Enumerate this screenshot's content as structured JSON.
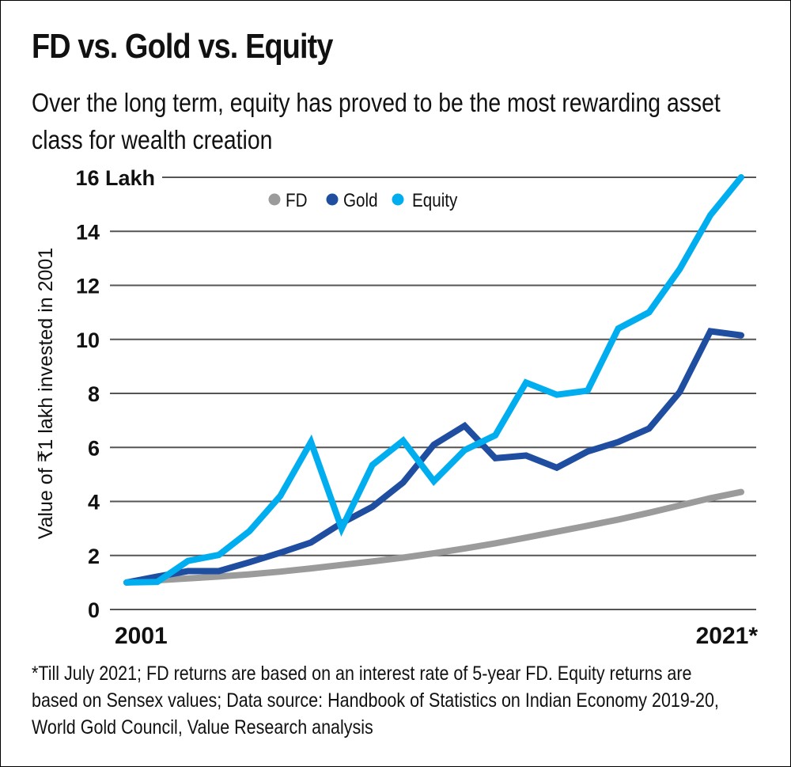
{
  "header": {
    "title": "FD vs. Gold vs. Equity",
    "subtitle": "Over the long term, equity has proved to be the most rewarding asset class for wealth creation"
  },
  "footnote": "*Till July 2021; FD returns are based on an interest rate of 5-year FD. Equity returns are based on Sensex values; Data source: Handbook of Statistics on Indian Economy 2019-20, World Gold Council, Value Research analysis",
  "colors": {
    "fd": "#9b9b9b",
    "gold": "#1f4ea1",
    "equity": "#00aeef",
    "grid": "#555555"
  },
  "chart_data": {
    "type": "line",
    "title": "FD vs. Gold vs. Equity",
    "xlabel": "",
    "ylabel": "Value of ₹1 lakh invested in 2001",
    "x": [
      2001,
      2002,
      2003,
      2004,
      2005,
      2006,
      2007,
      2008,
      2009,
      2010,
      2011,
      2012,
      2013,
      2014,
      2015,
      2016,
      2017,
      2018,
      2019,
      2020,
      2021
    ],
    "x_tick_labels": [
      "2001",
      "2021*"
    ],
    "y_ticks": [
      0,
      2,
      4,
      6,
      8,
      10,
      12,
      14,
      16
    ],
    "y_tick_labels": [
      "0",
      "2",
      "4",
      "6",
      "8",
      "10",
      "12",
      "14",
      "16 Lakh"
    ],
    "ylim": [
      0,
      16
    ],
    "grid": true,
    "legend_position": "top-center",
    "series": [
      {
        "name": "FD",
        "color_key": "fd",
        "values": [
          1.0,
          1.08,
          1.15,
          1.22,
          1.3,
          1.4,
          1.52,
          1.65,
          1.78,
          1.92,
          2.08,
          2.26,
          2.45,
          2.66,
          2.88,
          3.1,
          3.33,
          3.58,
          3.85,
          4.12,
          4.35
        ]
      },
      {
        "name": "Gold",
        "color_key": "gold",
        "values": [
          1.0,
          1.22,
          1.42,
          1.42,
          1.75,
          2.1,
          2.48,
          3.2,
          3.8,
          4.7,
          6.1,
          6.8,
          5.6,
          5.7,
          5.25,
          5.85,
          6.2,
          6.7,
          8.05,
          10.3,
          10.15
        ]
      },
      {
        "name": "Equity",
        "color_key": "equity",
        "values": [
          1.0,
          1.02,
          1.8,
          2.02,
          2.9,
          4.2,
          6.2,
          3.0,
          5.35,
          6.25,
          4.75,
          5.9,
          6.45,
          8.4,
          7.95,
          8.1,
          10.4,
          11.0,
          12.6,
          14.6,
          16.0
        ]
      }
    ]
  }
}
